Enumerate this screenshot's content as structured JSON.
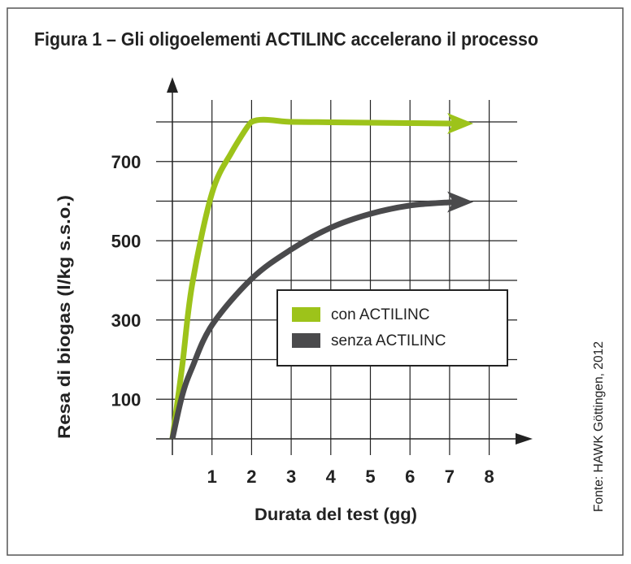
{
  "chart_data": {
    "type": "line",
    "title": "Figura 1 – Gli oligoelementi ACTILINC accelerano il processo",
    "xlabel": "Durata del test (gg)",
    "ylabel": "Resa di biogas (l/kg s.s.o.)",
    "source": "Fonte: HAWK Göttingen, 2012",
    "x_ticks": [
      "1",
      "2",
      "3",
      "4",
      "5",
      "6",
      "7",
      "8"
    ],
    "y_ticks": [
      {
        "label": "100",
        "value": 100
      },
      {
        "label": "300",
        "value": 300
      },
      {
        "label": "500",
        "value": 500
      },
      {
        "label": "700",
        "value": 700
      }
    ],
    "xlim": [
      0,
      8.8
    ],
    "ylim": [
      0,
      900
    ],
    "grid": true,
    "legend_position": "center-right",
    "series": [
      {
        "name": "con ACTILINC",
        "color": "#9dc31a",
        "x": [
          0,
          0.25,
          0.5,
          1,
          1.5,
          2,
          3,
          4,
          5,
          6,
          7,
          7.6
        ],
        "y": [
          0,
          185,
          390,
          620,
          724,
          800,
          800,
          799,
          798,
          797,
          796,
          796
        ]
      },
      {
        "name": "senza ACTILINC",
        "color": "#4a4a4c",
        "x": [
          0,
          0.25,
          0.5,
          1,
          2,
          3,
          4,
          5,
          6,
          7,
          7.6
        ],
        "y": [
          0,
          110,
          180,
          287,
          404,
          478,
          533,
          568,
          589,
          597,
          598
        ]
      }
    ]
  }
}
